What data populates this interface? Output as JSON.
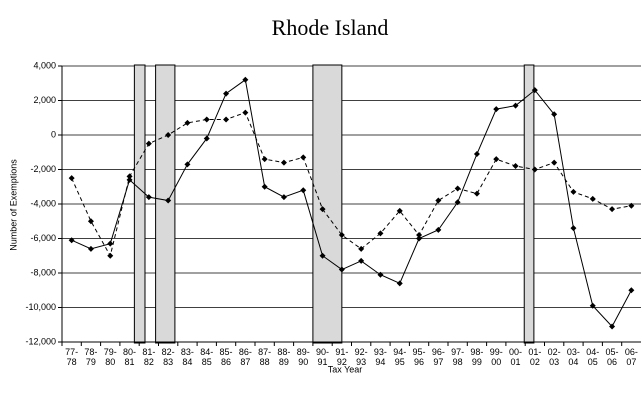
{
  "chart_data": {
    "type": "line",
    "title": "Rhode Island",
    "y_label": "Number of Exemptions",
    "x_label": "Tax Year",
    "categories": [
      "77-78",
      "78-79",
      "79-80",
      "80-81",
      "81-82",
      "82-83",
      "83-84",
      "84-85",
      "85-86",
      "86-87",
      "87-88",
      "88-89",
      "89-90",
      "90-91",
      "91-92",
      "92-93",
      "93-94",
      "94-95",
      "95-96",
      "96-97",
      "97-98",
      "98-99",
      "99-00",
      "00-01",
      "01-02",
      "02-03",
      "03-04",
      "04-05",
      "05-06",
      "06-07"
    ],
    "series": [
      {
        "color": "#000000",
        "dash": false,
        "values": [
          -6100,
          -6600,
          -6300,
          -2600,
          -3600,
          -3800,
          -1700,
          -200,
          2400,
          3200,
          -3000,
          -3600,
          -3200,
          -7000,
          -7800,
          -7300,
          -8100,
          -8600,
          -6000,
          -5500,
          -3900,
          -1100,
          1500,
          1700,
          2600,
          1200,
          -5400,
          -9900,
          -11100,
          -9000
        ]
      },
      {
        "color": "#000000",
        "dash": true,
        "values": [
          -2500,
          -5000,
          -7000,
          -2400,
          -500,
          0,
          700,
          900,
          900,
          1300,
          -1400,
          -1600,
          -1300,
          -4300,
          -5800,
          -6600,
          -5700,
          -4400,
          -5800,
          -3800,
          -3100,
          -3400,
          -1400,
          -1800,
          -2000,
          -1600,
          -3300,
          -3700,
          -4300,
          -4100
        ]
      }
    ],
    "ylim": [
      -12000,
      4000
    ],
    "yticks": [
      {
        "value": -12000,
        "label": "-12,000"
      },
      {
        "value": -10000,
        "label": "-10,000"
      },
      {
        "value": -8000,
        "label": "-8,000"
      },
      {
        "value": -6000,
        "label": "-6,000"
      },
      {
        "value": -4000,
        "label": "-4,000"
      },
      {
        "value": -2000,
        "label": "-2,000"
      },
      0,
      {
        "value": 2000,
        "label": "2,000"
      },
      {
        "value": 4000,
        "label": "4,000"
      }
    ],
    "grid": true
  }
}
